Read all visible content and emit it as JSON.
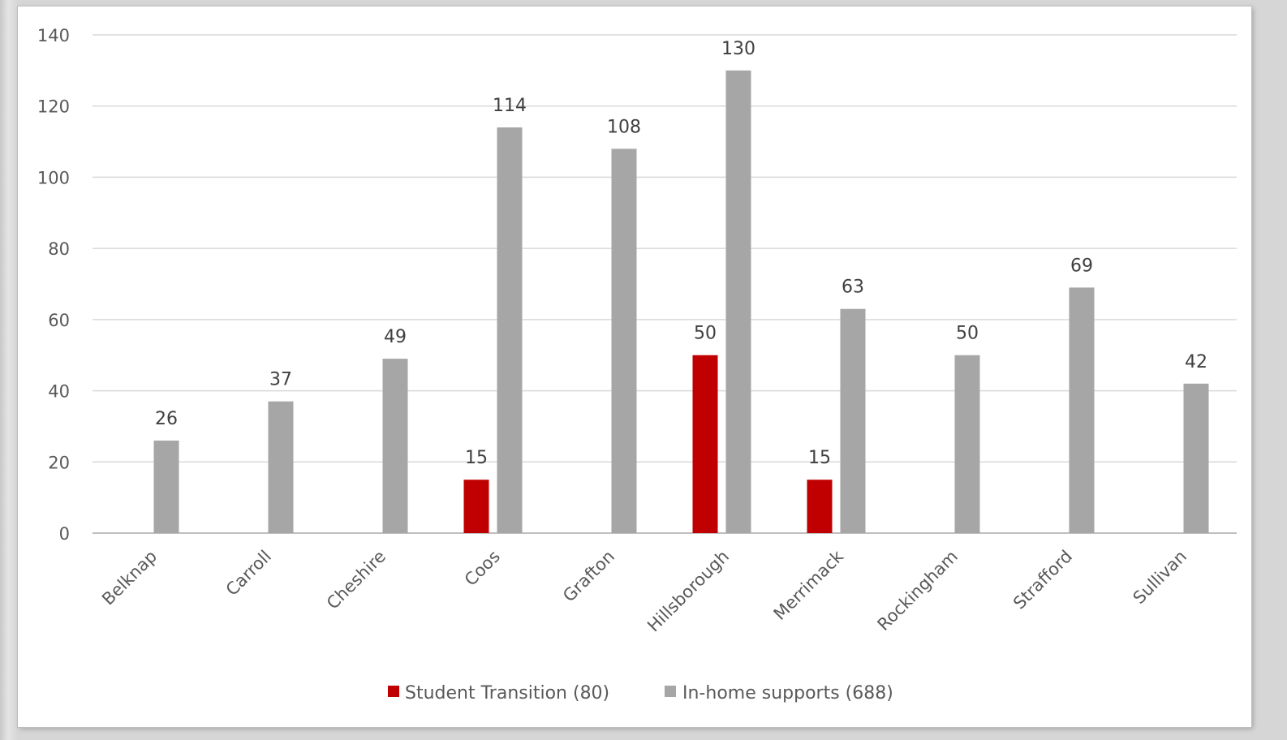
{
  "chart_data": {
    "type": "bar",
    "title": "",
    "xlabel": "",
    "ylabel": "",
    "ylim": [
      0,
      140
    ],
    "yticks": [
      0,
      20,
      40,
      60,
      80,
      100,
      120,
      140
    ],
    "grid": true,
    "legend_position": "bottom",
    "categories": [
      "Belknap",
      "Carroll",
      "Cheshire",
      "Coos",
      "Grafton",
      "Hillsborough",
      "Merrimack",
      "Rockingham",
      "Strafford",
      "Sullivan"
    ],
    "series": [
      {
        "name": "Student Transition (80)",
        "color": "#c00000",
        "values": [
          null,
          null,
          null,
          15,
          null,
          50,
          15,
          null,
          null,
          null
        ]
      },
      {
        "name": "In-home supports (688)",
        "color": "#a6a6a6",
        "values": [
          26,
          37,
          49,
          114,
          108,
          130,
          63,
          50,
          69,
          42
        ]
      }
    ]
  }
}
